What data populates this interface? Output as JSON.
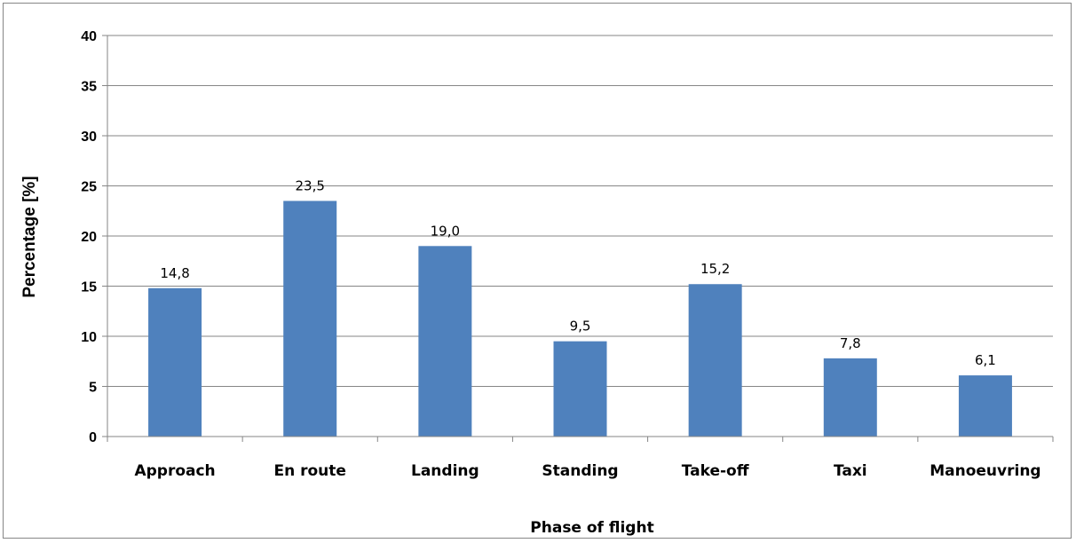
{
  "chart_data": {
    "type": "bar",
    "categories": [
      "Approach",
      "En route",
      "Landing",
      "Standing",
      "Take-off",
      "Taxi",
      "Manoeuvring"
    ],
    "values": [
      14.8,
      23.5,
      19.0,
      9.5,
      15.2,
      7.8,
      6.1
    ],
    "data_labels": [
      "14,8",
      "23,5",
      "19,0",
      "9,5",
      "15,2",
      "7,8",
      "6,1"
    ],
    "title": "",
    "xlabel": "Phase of flight",
    "ylabel": "Percentage [%]",
    "ylim": [
      0,
      40
    ],
    "yticks": [
      "0",
      "5",
      "10",
      "15",
      "20",
      "25",
      "30",
      "35",
      "40"
    ],
    "grid": true,
    "legend": "none",
    "bar_color": "#4f81bd",
    "gridline_color": "#868686"
  }
}
